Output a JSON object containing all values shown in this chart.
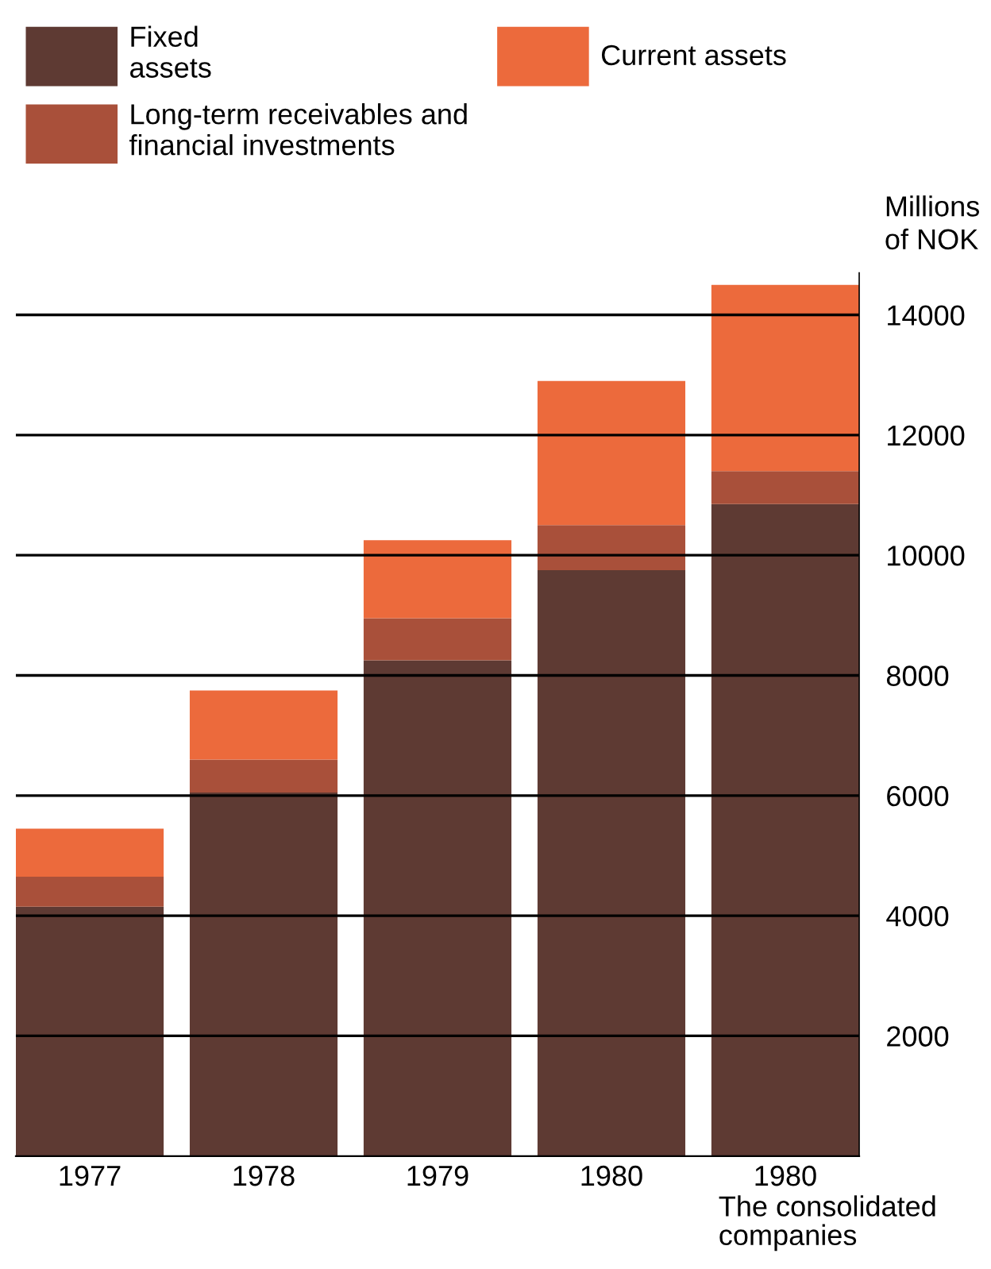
{
  "chart_data": {
    "type": "bar",
    "stacked": true,
    "categories": [
      "1977",
      "1978",
      "1979",
      "1980",
      "1980"
    ],
    "series": [
      {
        "name": "Fixed\nassets",
        "color": "#5e3a33",
        "values": [
          4150,
          6050,
          8250,
          9750,
          10850
        ]
      },
      {
        "name": "Long-term receivables and\nfinancial investments",
        "color": "#a9503a",
        "values": [
          500,
          550,
          700,
          750,
          550
        ]
      },
      {
        "name": "Current assets",
        "color": "#ec6a3c",
        "values": [
          800,
          1150,
          1300,
          2400,
          3100
        ]
      }
    ],
    "ylabel": "Millions\nof NOK",
    "ylim": [
      0,
      14700
    ],
    "yticks": [
      2000,
      4000,
      6000,
      8000,
      10000,
      12000,
      14000
    ],
    "annotations": [
      "The consolidated\ncompanies"
    ],
    "grid": "y",
    "legend": "top left"
  }
}
